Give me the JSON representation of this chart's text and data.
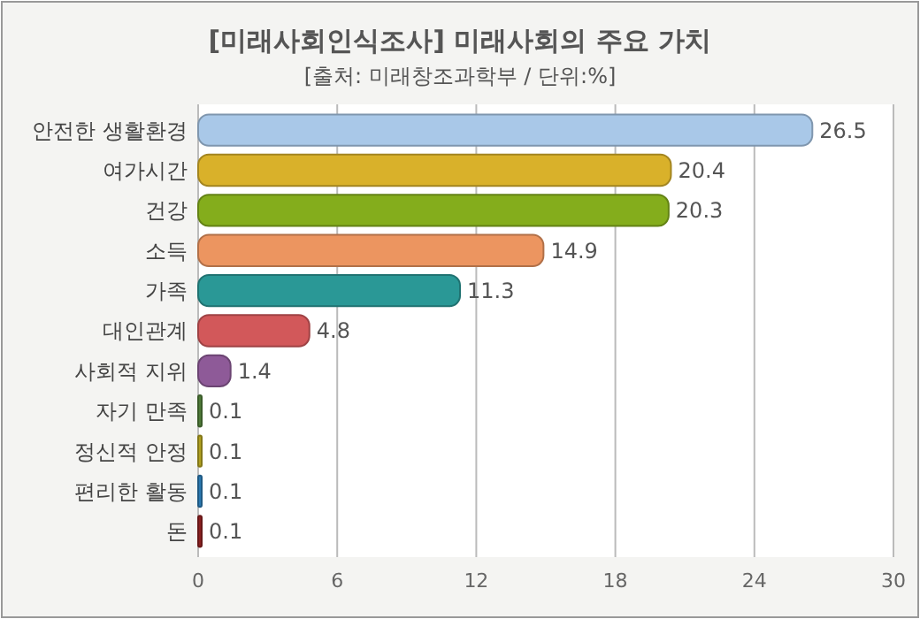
{
  "chart_data": {
    "type": "bar",
    "orientation": "horizontal",
    "title": "[미래사회인식조사] 미래사회의 주요 가치",
    "subtitle": "[출처: 미래창조과학부 / 단위:%]",
    "categories": [
      "안전한 생활환경",
      "여가시간",
      "건강",
      "소득",
      "가족",
      "대인관계",
      "사회적 지위",
      "자기 만족",
      "정신적 안정",
      "편리한 활동",
      "돈"
    ],
    "values": [
      26.5,
      20.4,
      20.3,
      14.9,
      11.3,
      4.8,
      1.4,
      0.1,
      0.1,
      0.1,
      0.1
    ],
    "colors": [
      "#a9c8e8",
      "#d9b12a",
      "#84ad1c",
      "#ec9560",
      "#2a9896",
      "#d2585a",
      "#8e5a98",
      "#4e7a38",
      "#b0a020",
      "#2a78b0",
      "#8a2020"
    ],
    "xlim": [
      0,
      30
    ],
    "xticks": [
      0,
      6,
      12,
      18,
      24,
      30
    ],
    "grid": "x",
    "data_labels": true
  }
}
